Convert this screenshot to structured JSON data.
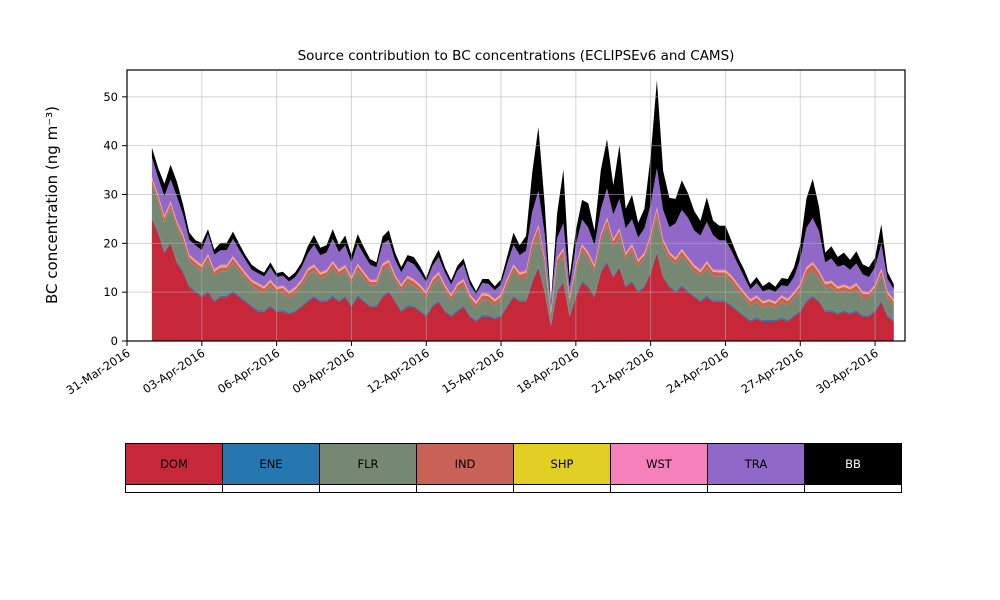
{
  "page": {
    "background": "#ffffff"
  },
  "chart_data": {
    "type": "area",
    "stacked": true,
    "title": "Source contribution to BC concentrations (ECLIPSEv6 and CAMS)",
    "xlabel": "",
    "ylabel": "BC concentration (ng m⁻³)",
    "ylim": [
      0,
      55.5
    ],
    "yticks": [
      0,
      10,
      20,
      30,
      40,
      50
    ],
    "grid": true,
    "legend_position": "bottom",
    "x_axis": {
      "domain_days": [
        0,
        31.2
      ],
      "tick_days": [
        0,
        3,
        6,
        9,
        12,
        15,
        18,
        21,
        24,
        27,
        30
      ],
      "tick_labels": [
        "31-Mar-2016",
        "03-Apr-2016",
        "06-Apr-2016",
        "09-Apr-2016",
        "12-Apr-2016",
        "15-Apr-2016",
        "18-Apr-2016",
        "21-Apr-2016",
        "24-Apr-2016",
        "27-Apr-2016",
        "30-Apr-2016"
      ],
      "tick_label_rotation_deg": -33
    },
    "sample_start_day": 1.0,
    "sample_step_days": 0.25,
    "series": [
      {
        "name": "DOM",
        "color": "#c62839",
        "values": [
          25,
          22,
          18,
          20,
          16,
          14,
          11,
          10,
          9,
          10,
          8,
          9,
          9,
          10,
          9,
          8,
          7,
          6,
          6,
          7,
          6,
          6,
          5.5,
          6,
          7,
          8,
          9,
          8,
          8,
          9,
          8,
          9,
          7,
          9,
          8,
          7,
          7,
          9,
          10,
          8,
          6,
          7,
          7,
          6,
          5,
          7,
          8,
          6,
          5,
          6,
          7,
          5,
          4,
          5,
          5,
          4.5,
          5,
          7,
          9,
          8,
          8,
          12,
          15,
          10,
          3,
          10,
          12,
          5,
          9,
          12,
          11,
          9,
          14,
          16,
          13,
          15,
          11,
          12,
          10,
          11,
          14,
          18,
          13,
          11,
          10,
          11,
          10,
          9,
          8,
          9,
          8,
          8,
          8,
          7,
          6,
          5,
          4,
          4.5,
          4,
          4,
          4,
          4.5,
          4,
          5,
          6,
          8,
          9,
          8,
          6,
          6,
          5.5,
          6,
          5.5,
          6,
          5,
          5,
          6,
          8,
          5,
          4
        ]
      },
      {
        "name": "ENE",
        "color": "#2677b0",
        "values": [
          0.3,
          0.4,
          0.3,
          0.3,
          0.3,
          0.4,
          0.3,
          0.3,
          0.3,
          0.4,
          0.3,
          0.3,
          0.3,
          0.4,
          0.3,
          0.3,
          0.3,
          0.4,
          0.3,
          0.3,
          0.3,
          0.4,
          0.3,
          0.3,
          0.3,
          0.4,
          0.3,
          0.3,
          0.3,
          0.4,
          0.3,
          0.3,
          0.3,
          0.4,
          0.3,
          0.3,
          0.3,
          0.4,
          0.3,
          0.3,
          0.3,
          0.4,
          0.3,
          0.3,
          0.3,
          0.4,
          0.3,
          0.3,
          0.3,
          0.4,
          0.3,
          0.3,
          0.3,
          0.4,
          0.3,
          0.3,
          0.3,
          0.4,
          0.3,
          0.3,
          0.3,
          0.4,
          0.3,
          0.3,
          0.3,
          0.4,
          0.3,
          0.3,
          0.3,
          0.4,
          0.3,
          0.3,
          0.3,
          0.4,
          0.3,
          0.3,
          0.3,
          0.4,
          0.3,
          0.3,
          0.3,
          0.4,
          0.3,
          0.3,
          0.3,
          0.4,
          0.3,
          0.3,
          0.3,
          0.4,
          0.3,
          0.3,
          0.3,
          0.4,
          0.3,
          0.3,
          0.3,
          0.4,
          0.3,
          0.3,
          0.3,
          0.4,
          0.3,
          0.3,
          0.3,
          0.4,
          0.3,
          0.3,
          0.3,
          0.4,
          0.3,
          0.3,
          0.3,
          0.4,
          0.3,
          0.3,
          0.3,
          0.4,
          0.3,
          0.3
        ]
      },
      {
        "name": "FLR",
        "color": "#778872",
        "values": [
          7,
          6,
          6,
          7,
          7,
          6,
          5,
          5,
          5,
          6,
          5,
          5,
          5,
          5.5,
          5,
          4.5,
          4,
          4,
          3.5,
          4,
          3.5,
          3.5,
          3,
          3.5,
          4,
          5,
          5,
          4.5,
          5,
          5.5,
          5,
          5,
          4.5,
          5,
          4.5,
          4,
          4,
          5,
          5,
          4,
          4,
          4.5,
          4,
          4,
          3.5,
          4,
          4.5,
          4,
          3,
          4,
          4,
          3,
          2.5,
          3,
          3,
          2.5,
          3,
          4,
          5,
          4.5,
          4.5,
          6,
          6.5,
          5,
          2,
          5,
          5,
          2.5,
          5,
          6,
          5.5,
          5,
          6,
          7,
          6,
          6,
          5.5,
          6,
          5,
          5.5,
          6,
          7,
          6,
          5.5,
          5.5,
          6,
          5.5,
          5,
          5,
          5.5,
          5,
          5,
          5,
          4.5,
          4,
          3.5,
          3,
          3,
          2.5,
          3,
          2.5,
          3,
          3,
          3.5,
          4,
          5,
          5,
          4.5,
          4.5,
          4.5,
          4,
          4,
          4,
          4,
          3.5,
          3.5,
          4,
          5,
          3.5,
          3
        ]
      },
      {
        "name": "IND",
        "color": "#c96256",
        "values": [
          0.8,
          1,
          0.9,
          0.8,
          0.8,
          1,
          0.9,
          0.8,
          0.8,
          1,
          0.9,
          0.8,
          0.8,
          1,
          0.9,
          0.8,
          0.8,
          1,
          0.9,
          0.8,
          0.8,
          1,
          0.9,
          0.8,
          0.8,
          1,
          0.9,
          0.8,
          0.8,
          1,
          0.9,
          0.8,
          0.8,
          1,
          0.9,
          0.8,
          0.8,
          1,
          0.9,
          0.8,
          0.8,
          1,
          0.9,
          0.8,
          0.8,
          1,
          0.9,
          0.8,
          0.8,
          1,
          0.9,
          0.8,
          0.8,
          1,
          0.9,
          0.8,
          0.8,
          1,
          0.9,
          0.8,
          1.2,
          1.5,
          1.5,
          1.2,
          0.5,
          1.2,
          1.3,
          0.7,
          0.8,
          1,
          0.9,
          0.8,
          1.2,
          1.4,
          1.1,
          1.3,
          0.8,
          1,
          0.9,
          0.8,
          1.2,
          1.5,
          1.1,
          1,
          0.8,
          1,
          0.9,
          0.8,
          0.8,
          1,
          0.9,
          0.8,
          0.8,
          1,
          0.9,
          0.8,
          0.8,
          1,
          0.9,
          0.8,
          0.8,
          1,
          0.9,
          0.8,
          1,
          1.3,
          1.4,
          1.2,
          0.8,
          1,
          0.9,
          0.8,
          0.8,
          1,
          0.9,
          0.8,
          0.8,
          1,
          0.9,
          0.8
        ]
      },
      {
        "name": "SHP",
        "color": "#e2cf24",
        "values": [
          0.2,
          0.2,
          0.2,
          0.2,
          0.2,
          0.2,
          0.2,
          0.2,
          0.2,
          0.2,
          0.2,
          0.2,
          0.2,
          0.2,
          0.2,
          0.2,
          0.2,
          0.2,
          0.2,
          0.2,
          0.2,
          0.2,
          0.2,
          0.2,
          0.2,
          0.2,
          0.2,
          0.2,
          0.2,
          0.2,
          0.2,
          0.2,
          0.2,
          0.2,
          0.2,
          0.2,
          0.2,
          0.2,
          0.2,
          0.2,
          0.2,
          0.2,
          0.2,
          0.2,
          0.2,
          0.2,
          0.2,
          0.2,
          0.2,
          0.2,
          0.2,
          0.2,
          0.2,
          0.2,
          0.2,
          0.2,
          0.2,
          0.2,
          0.2,
          0.2,
          0.2,
          0.2,
          0.2,
          0.2,
          0.2,
          0.2,
          0.2,
          0.2,
          0.2,
          0.2,
          0.2,
          0.2,
          0.2,
          0.2,
          0.2,
          0.2,
          0.2,
          0.2,
          0.2,
          0.2,
          0.2,
          0.2,
          0.2,
          0.2,
          0.2,
          0.2,
          0.2,
          0.2,
          0.2,
          0.2,
          0.2,
          0.2,
          0.2,
          0.2,
          0.2,
          0.2,
          0.2,
          0.2,
          0.2,
          0.2,
          0.2,
          0.2,
          0.2,
          0.2,
          0.2,
          0.2,
          0.2,
          0.2,
          0.2,
          0.2,
          0.2,
          0.2,
          0.2,
          0.2,
          0.2,
          0.2,
          0.2,
          0.2,
          0.2,
          0.2
        ]
      },
      {
        "name": "WST",
        "color": "#f580bb",
        "values": [
          0.3,
          0.3,
          0.3,
          0.3,
          0.3,
          0.3,
          0.3,
          0.3,
          0.3,
          0.3,
          0.3,
          0.3,
          0.3,
          0.3,
          0.3,
          0.3,
          0.3,
          0.3,
          0.3,
          0.3,
          0.3,
          0.3,
          0.3,
          0.3,
          0.3,
          0.3,
          0.3,
          0.3,
          0.3,
          0.3,
          0.3,
          0.3,
          0.3,
          0.3,
          0.3,
          0.3,
          0.3,
          0.3,
          0.3,
          0.3,
          0.3,
          0.3,
          0.3,
          0.3,
          0.3,
          0.3,
          0.3,
          0.3,
          0.3,
          0.3,
          0.3,
          0.3,
          0.3,
          0.3,
          0.3,
          0.3,
          0.3,
          0.3,
          0.3,
          0.3,
          0.3,
          0.3,
          0.3,
          0.3,
          0.3,
          0.3,
          0.3,
          0.3,
          0.3,
          0.3,
          0.3,
          0.3,
          0.3,
          0.3,
          0.3,
          0.3,
          0.3,
          0.3,
          0.3,
          0.3,
          0.3,
          0.3,
          0.3,
          0.3,
          0.3,
          0.3,
          0.3,
          0.3,
          0.3,
          0.3,
          0.3,
          0.3,
          0.3,
          0.3,
          0.3,
          0.3,
          0.3,
          0.3,
          0.3,
          0.3,
          0.3,
          0.3,
          0.3,
          0.3,
          0.3,
          0.3,
          0.3,
          0.3,
          0.3,
          0.3,
          0.3,
          0.3,
          0.3,
          0.3,
          0.3,
          0.3,
          0.3,
          0.3,
          0.3,
          0.3
        ]
      },
      {
        "name": "TRA",
        "color": "#9068c8",
        "values": [
          4,
          3.5,
          4,
          4.5,
          5,
          4,
          3,
          3,
          3,
          4,
          3,
          3,
          3,
          3.5,
          3,
          2.5,
          2,
          2,
          2,
          2.5,
          2,
          2,
          2,
          2,
          2.5,
          3,
          4,
          3.5,
          3.5,
          4.5,
          3.5,
          4,
          3,
          4,
          3.5,
          3,
          2.5,
          4,
          4,
          3,
          2.5,
          3,
          3,
          2.5,
          2,
          2.5,
          3,
          2.5,
          2,
          2.5,
          3,
          2,
          1.5,
          2,
          2,
          1.8,
          2,
          3,
          4,
          3.5,
          4,
          6,
          7,
          5,
          1,
          4,
          5,
          2,
          4,
          5,
          5,
          4,
          5,
          6,
          5,
          6,
          5,
          5,
          4.5,
          5,
          6,
          8,
          6,
          5,
          7,
          8,
          8,
          7,
          7,
          8,
          7,
          6,
          6,
          5,
          4,
          3,
          2,
          2.5,
          2,
          2,
          2,
          2,
          2.5,
          3,
          5,
          8,
          9,
          8,
          4,
          4.5,
          4,
          4,
          3.5,
          4,
          3.5,
          3,
          3.5,
          5,
          2.5,
          2
        ]
      },
      {
        "name": "BB",
        "color": "#000000",
        "values": [
          2,
          2,
          2.5,
          3,
          3,
          2,
          1.5,
          1,
          1.5,
          1,
          1,
          1.5,
          1.5,
          1.5,
          1.2,
          1,
          1,
          0.8,
          0.8,
          1,
          0.8,
          0.8,
          0.8,
          1,
          1,
          1.5,
          2,
          1.5,
          1.5,
          2,
          1.5,
          2,
          1.5,
          2,
          1.5,
          1.2,
          1,
          1.5,
          2,
          1.5,
          1,
          1.2,
          1.5,
          1.2,
          0.8,
          1,
          1.5,
          1,
          0.8,
          1,
          1.2,
          1,
          0.6,
          0.8,
          1,
          0.8,
          1,
          1.5,
          2.5,
          2,
          3,
          8,
          13,
          6,
          0.5,
          5,
          11,
          2,
          3,
          4,
          5,
          3,
          8,
          10,
          6,
          11,
          4,
          5,
          3,
          4,
          10,
          18,
          8,
          6,
          5,
          6,
          5,
          4,
          3,
          5,
          3,
          3,
          3,
          2,
          1.5,
          1.5,
          1,
          1.2,
          1,
          1.5,
          1,
          1.5,
          1.5,
          2,
          3,
          6,
          8,
          5,
          2,
          2.5,
          2,
          2.5,
          2,
          2.5,
          2,
          2,
          2,
          4,
          1.5,
          1
        ]
      }
    ]
  }
}
